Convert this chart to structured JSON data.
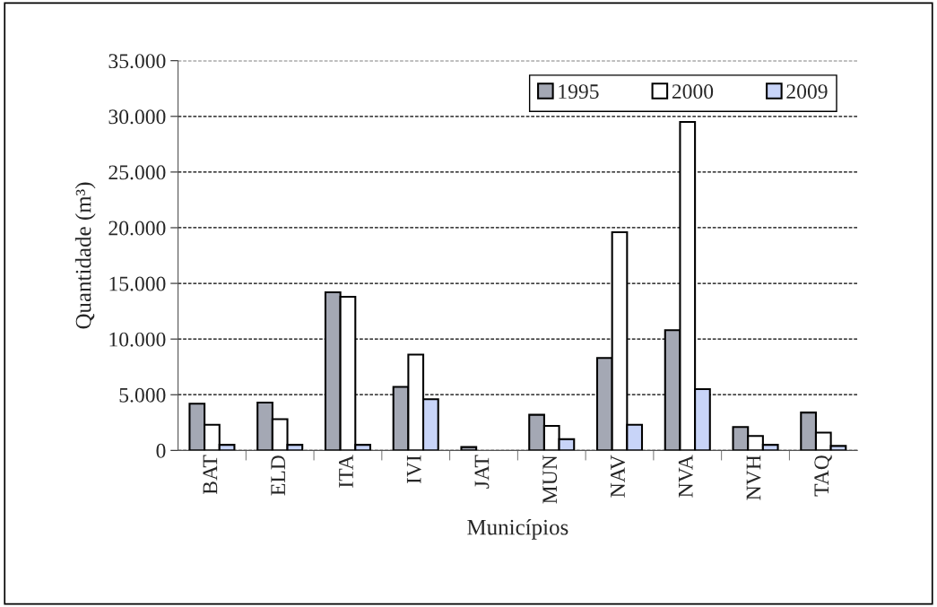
{
  "chart_data": {
    "type": "bar",
    "xlabel": "Municípios",
    "ylabel": "Quantidade (m³)",
    "categories": [
      "BAT",
      "ELD",
      "ITA",
      "IVI",
      "JAT",
      "MUN",
      "NAV",
      "NVA",
      "NVH",
      "TAQ"
    ],
    "series": [
      {
        "name": "1995",
        "color": "#a4a8b4",
        "values": [
          4200,
          4300,
          14200,
          5700,
          300,
          3200,
          8300,
          10800,
          2100,
          3400
        ]
      },
      {
        "name": "2000",
        "color": "#ffffff",
        "values": [
          2300,
          2800,
          13800,
          8600,
          null,
          2200,
          19600,
          29500,
          1300,
          1600
        ]
      },
      {
        "name": "2009",
        "color": "#c8d4f8",
        "values": [
          500,
          500,
          500,
          4600,
          null,
          1000,
          2300,
          5500,
          500,
          400
        ]
      }
    ],
    "ylim": [
      0,
      35000
    ],
    "yticks": [
      {
        "value": 0,
        "label": "0"
      },
      {
        "value": 5000,
        "label": "5.000"
      },
      {
        "value": 10000,
        "label": "10.000"
      },
      {
        "value": 15000,
        "label": "15.000"
      },
      {
        "value": 20000,
        "label": "20.000"
      },
      {
        "value": 25000,
        "label": "25.000"
      },
      {
        "value": 30000,
        "label": "30.000"
      },
      {
        "value": 35000,
        "label": "35.000"
      }
    ],
    "grid": "y",
    "legend": "top right"
  }
}
